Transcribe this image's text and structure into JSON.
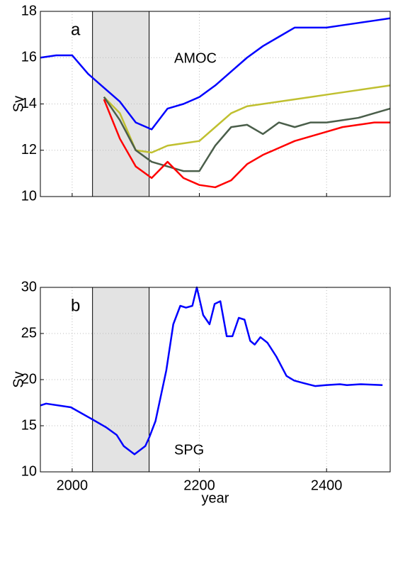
{
  "chart_data": [
    {
      "type": "line",
      "panel_label": "a",
      "annotation": "AMOC",
      "ylabel": "Sv",
      "x": [
        1950,
        1975,
        2000,
        2025,
        2050,
        2075,
        2100,
        2125,
        2150,
        2175,
        2200,
        2225,
        2250,
        2275,
        2300,
        2325,
        2350,
        2375,
        2400,
        2425,
        2450,
        2475,
        2500
      ],
      "series": [
        {
          "color": "#0000ff",
          "values": [
            16.0,
            16.1,
            16.1,
            15.3,
            14.7,
            14.1,
            13.2,
            12.9,
            13.8,
            14.0,
            14.3,
            14.8,
            15.4,
            16.0,
            16.5,
            16.9,
            17.3,
            17.3,
            17.3,
            17.4,
            17.5,
            17.6,
            17.7
          ]
        },
        {
          "color": "#c0c030",
          "values": [
            null,
            null,
            null,
            null,
            14.3,
            13.6,
            12.0,
            11.9,
            12.2,
            12.3,
            12.4,
            13.0,
            13.6,
            13.9,
            14.0,
            14.1,
            14.2,
            14.3,
            14.4,
            14.5,
            14.6,
            14.7,
            14.8
          ]
        },
        {
          "color": "#4a5e4a",
          "values": [
            null,
            null,
            null,
            null,
            14.3,
            13.3,
            12.0,
            11.5,
            11.3,
            11.1,
            11.1,
            12.2,
            13.0,
            13.1,
            12.7,
            13.2,
            13.0,
            13.2,
            13.2,
            13.3,
            13.4,
            13.6,
            13.8
          ]
        },
        {
          "color": "#ff0000",
          "values": [
            null,
            null,
            null,
            null,
            14.2,
            12.5,
            11.3,
            10.8,
            11.5,
            10.8,
            10.5,
            10.4,
            10.7,
            11.4,
            11.8,
            12.1,
            12.4,
            12.6,
            12.8,
            13.0,
            13.1,
            13.2,
            13.2
          ]
        }
      ],
      "xlim": [
        1950,
        2500
      ],
      "xticks": [
        2000,
        2200,
        2400
      ],
      "ylim": [
        10,
        18
      ],
      "yticks": [
        10,
        12,
        14,
        16,
        18
      ],
      "shaded_span": [
        2032,
        2121
      ],
      "grid": true
    },
    {
      "type": "line",
      "panel_label": "b",
      "annotation": "SPG",
      "ylabel": "Sv",
      "xlabel": "year",
      "x": [
        1950,
        1959,
        1998,
        2029,
        2054,
        2070,
        2081,
        2098,
        2115,
        2121,
        2131,
        2148,
        2159,
        2170,
        2179,
        2189,
        2196,
        2206,
        2216,
        2224,
        2233,
        2243,
        2252,
        2262,
        2271,
        2280,
        2287,
        2296,
        2307,
        2321,
        2337,
        2349,
        2365,
        2382,
        2399,
        2421,
        2432,
        2454,
        2488
      ],
      "series": [
        {
          "color": "#0000ff",
          "values": [
            17.2,
            17.4,
            17.0,
            15.8,
            14.8,
            14.0,
            12.8,
            11.9,
            12.8,
            13.7,
            15.5,
            21.0,
            26.0,
            28.0,
            27.8,
            28.0,
            30.0,
            27.0,
            26.0,
            28.2,
            28.5,
            24.7,
            24.7,
            26.7,
            26.5,
            24.2,
            23.8,
            24.6,
            24.0,
            22.5,
            20.4,
            19.9,
            19.6,
            19.3,
            19.4,
            19.5,
            19.4,
            19.5,
            19.4
          ]
        }
      ],
      "xlim": [
        1950,
        2500
      ],
      "xticks": [
        2000,
        2200,
        2400
      ],
      "ylim": [
        10,
        30
      ],
      "yticks": [
        10,
        15,
        20,
        25,
        30
      ],
      "shaded_span": [
        2032,
        2121
      ],
      "grid": true
    }
  ]
}
